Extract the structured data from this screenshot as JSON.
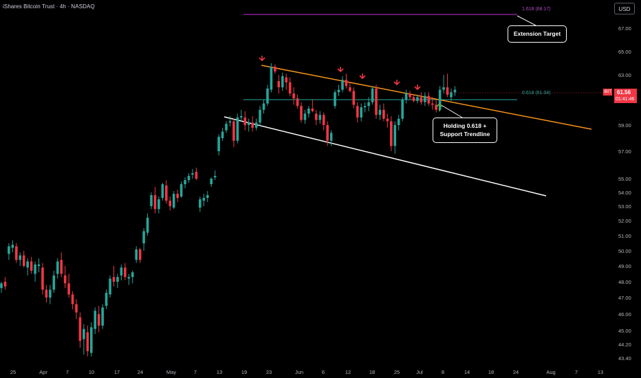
{
  "header": {
    "title": "iShares Bitcoin Trust · 4h · NASDAQ",
    "currency_button": "USD"
  },
  "price": {
    "symbol": "IBIT",
    "last": "61.56",
    "countdown": "01:41:46"
  },
  "annotations": {
    "extension_target": "Extension Target",
    "holding_line1": "Holding 0.618 +",
    "holding_line2": "Support Trendline",
    "fib_1618": "1.618 (68.17)",
    "fib_0618": "0.618 (61.04)"
  },
  "colors": {
    "bull": "#26a69a",
    "bear": "#f23645",
    "trend_resistance": "#f7931a",
    "trend_support": "#ffffff",
    "fib_extension": "#9c27b0",
    "fib_0618": "#1f8c84",
    "arrow_down": "#f23645",
    "arrow_up": "#4caf50"
  },
  "chart_data": {
    "type": "candlestick",
    "title": "iShares Bitcoin Trust · 4h · NASDAQ",
    "y_ticks": [
      "67.00",
      "65.00",
      "63.00",
      "61.00",
      "59.00",
      "57.00",
      "55.00",
      "54.00",
      "53.00",
      "52.00",
      "51.00",
      "50.00",
      "49.00",
      "48.00",
      "47.00",
      "46.00",
      "45.00",
      "44.20",
      "43.40"
    ],
    "x_ticks": [
      "25",
      "Apr",
      "7",
      "10",
      "17",
      "24",
      "May",
      "7",
      "13",
      "19",
      "23",
      "Jun",
      "6",
      "12",
      "18",
      "25",
      "Jul",
      "8",
      "14",
      "18",
      "24",
      "Aug",
      "7",
      "13"
    ],
    "x_range_labels": {
      "start": "Mar 25",
      "end": "Aug 13"
    },
    "levels": [
      {
        "name": "1.618 (68.17)",
        "value": 68.17
      },
      {
        "name": "0.618 (61.04)",
        "value": 61.04
      }
    ],
    "last_price": 61.56,
    "trendlines": [
      {
        "name": "resistance",
        "from": {
          "x": "May 21",
          "y": 63.9
        },
        "to": {
          "x": "Aug 10",
          "y": 58.5
        }
      },
      {
        "name": "support",
        "from": {
          "x": "May 14",
          "y": 59.7
        },
        "to": {
          "x": "Aug 1",
          "y": 53.7
        }
      }
    ],
    "rejection_markers": [
      "May 21",
      "Jun 10",
      "Jun 17",
      "Jun 25",
      "Jul 2"
    ],
    "support_marker": "Jul 8",
    "candles": [
      [
        47.6,
        48.0,
        47.3,
        47.9
      ],
      [
        48.0,
        48.3,
        47.5,
        47.7
      ],
      [
        49.8,
        50.5,
        49.4,
        50.3
      ],
      [
        50.2,
        50.7,
        49.9,
        50.4
      ],
      [
        50.3,
        50.5,
        49.2,
        49.4
      ],
      [
        49.4,
        49.9,
        49.0,
        49.7
      ],
      [
        49.7,
        50.0,
        48.9,
        49.0
      ],
      [
        48.9,
        49.5,
        48.4,
        49.3
      ],
      [
        49.3,
        49.6,
        48.5,
        48.7
      ],
      [
        48.5,
        49.3,
        48.0,
        49.1
      ],
      [
        49.0,
        49.5,
        48.6,
        49.1
      ],
      [
        48.9,
        49.2,
        47.2,
        47.5
      ],
      [
        47.5,
        47.8,
        46.7,
        47.0
      ],
      [
        47.0,
        47.8,
        46.6,
        47.5
      ],
      [
        47.5,
        48.7,
        47.3,
        48.4
      ],
      [
        48.5,
        49.5,
        48.2,
        49.3
      ],
      [
        49.4,
        49.9,
        48.3,
        48.5
      ],
      [
        48.4,
        49.0,
        47.6,
        47.9
      ],
      [
        47.9,
        48.5,
        47.0,
        47.2
      ],
      [
        47.2,
        47.4,
        46.3,
        46.6
      ],
      [
        46.6,
        46.9,
        45.7,
        46.1
      ],
      [
        45.8,
        46.1,
        44.0,
        44.4
      ],
      [
        44.5,
        45.4,
        43.6,
        45.1
      ],
      [
        44.9,
        45.3,
        43.5,
        43.8
      ],
      [
        43.7,
        45.5,
        43.5,
        45.2
      ],
      [
        45.1,
        46.4,
        44.8,
        46.2
      ],
      [
        46.0,
        46.5,
        44.9,
        45.3
      ],
      [
        45.3,
        46.6,
        45.1,
        46.4
      ],
      [
        46.5,
        47.5,
        46.3,
        47.3
      ],
      [
        47.2,
        48.4,
        47.0,
        48.2
      ],
      [
        48.3,
        49.0,
        47.7,
        48.0
      ],
      [
        48.0,
        48.5,
        47.6,
        48.3
      ],
      [
        48.4,
        49.1,
        48.1,
        48.9
      ],
      [
        48.9,
        49.2,
        48.1,
        48.3
      ],
      [
        48.2,
        48.5,
        47.8,
        48.3
      ],
      [
        48.3,
        48.7,
        47.9,
        48.6
      ],
      [
        49.4,
        50.3,
        49.2,
        50.1
      ],
      [
        50.1,
        50.2,
        49.2,
        49.4
      ],
      [
        50.5,
        51.5,
        50.0,
        51.3
      ],
      [
        51.2,
        52.5,
        51.0,
        52.2
      ],
      [
        53.0,
        54.0,
        52.8,
        53.8
      ],
      [
        53.8,
        54.4,
        52.5,
        52.8
      ],
      [
        52.8,
        53.7,
        52.5,
        53.5
      ],
      [
        53.6,
        54.7,
        53.4,
        54.6
      ],
      [
        54.5,
        54.9,
        53.2,
        53.4
      ],
      [
        53.4,
        53.7,
        52.7,
        53.0
      ],
      [
        52.9,
        54.1,
        52.8,
        53.9
      ],
      [
        53.9,
        54.2,
        53.3,
        53.6
      ],
      [
        53.7,
        54.8,
        53.6,
        54.6
      ],
      [
        54.6,
        55.1,
        54.3,
        54.9
      ],
      [
        54.9,
        55.4,
        54.7,
        55.2
      ],
      [
        55.3,
        55.7,
        55.0,
        55.4
      ],
      [
        55.5,
        55.8,
        54.9,
        55.0
      ],
      [
        52.9,
        53.7,
        52.6,
        53.5
      ],
      [
        53.4,
        53.9,
        53.0,
        53.6
      ],
      [
        53.6,
        54.1,
        53.3,
        53.8
      ],
      [
        54.6,
        55.1,
        54.4,
        55.0
      ],
      [
        55.1,
        55.6,
        54.9,
        55.2
      ],
      [
        57.0,
        58.3,
        56.7,
        58.1
      ],
      [
        58.0,
        58.8,
        57.8,
        58.5
      ],
      [
        58.6,
        59.3,
        58.4,
        59.1
      ],
      [
        59.2,
        59.7,
        58.9,
        59.3
      ],
      [
        59.3,
        59.5,
        57.3,
        57.8
      ],
      [
        57.8,
        59.9,
        57.6,
        59.6
      ],
      [
        59.6,
        60.2,
        59.3,
        59.7
      ],
      [
        59.6,
        60.1,
        58.6,
        59.0
      ],
      [
        59.0,
        59.5,
        58.5,
        59.2
      ],
      [
        59.2,
        59.7,
        58.5,
        58.8
      ],
      [
        58.8,
        59.5,
        58.6,
        59.2
      ],
      [
        59.2,
        60.5,
        58.9,
        60.2
      ],
      [
        60.2,
        61.0,
        59.9,
        60.7
      ],
      [
        60.7,
        62.2,
        60.5,
        61.9
      ],
      [
        61.8,
        64.0,
        61.6,
        63.7
      ],
      [
        63.7,
        63.9,
        63.1,
        63.3
      ],
      [
        62.5,
        63.0,
        61.5,
        62.0
      ],
      [
        62.0,
        63.2,
        61.7,
        62.9
      ],
      [
        62.8,
        63.1,
        61.8,
        62.4
      ],
      [
        62.4,
        62.8,
        61.3,
        61.5
      ],
      [
        61.5,
        62.0,
        60.6,
        61.1
      ],
      [
        61.1,
        61.4,
        60.3,
        60.5
      ],
      [
        60.5,
        60.8,
        59.2,
        59.4
      ],
      [
        59.4,
        60.2,
        59.1,
        59.9
      ],
      [
        59.9,
        60.5,
        59.6,
        60.3
      ],
      [
        60.3,
        61.0,
        60.0,
        60.1
      ],
      [
        59.9,
        60.2,
        59.0,
        59.4
      ],
      [
        59.4,
        60.1,
        59.1,
        59.8
      ],
      [
        59.8,
        60.0,
        58.6,
        59.0
      ],
      [
        59.0,
        59.3,
        57.4,
        57.8
      ],
      [
        57.8,
        58.6,
        57.4,
        58.4
      ],
      [
        60.5,
        61.8,
        60.3,
        61.6
      ],
      [
        61.6,
        62.2,
        61.3,
        61.8
      ],
      [
        61.8,
        62.9,
        61.6,
        62.6
      ],
      [
        62.6,
        63.1,
        61.9,
        62.1
      ],
      [
        62.0,
        62.4,
        61.6,
        61.7
      ],
      [
        61.7,
        62.0,
        60.3,
        60.6
      ],
      [
        60.5,
        60.8,
        59.2,
        59.6
      ],
      [
        59.6,
        60.7,
        59.3,
        60.4
      ],
      [
        60.4,
        60.8,
        60.0,
        60.5
      ],
      [
        60.5,
        61.2,
        60.1,
        60.8
      ],
      [
        60.8,
        62.1,
        60.6,
        61.9
      ],
      [
        61.9,
        62.2,
        59.5,
        59.8
      ],
      [
        59.8,
        60.6,
        59.4,
        60.2
      ],
      [
        60.2,
        60.7,
        59.3,
        59.5
      ],
      [
        59.5,
        59.9,
        58.8,
        59.3
      ],
      [
        59.3,
        59.7,
        57.0,
        57.4
      ],
      [
        57.4,
        59.3,
        56.8,
        59.0
      ],
      [
        59.0,
        59.8,
        58.6,
        59.5
      ],
      [
        59.5,
        61.2,
        59.3,
        61.0
      ],
      [
        61.0,
        61.8,
        60.7,
        61.5
      ],
      [
        61.5,
        61.7,
        61.0,
        61.2
      ],
      [
        61.2,
        61.4,
        60.8,
        60.9
      ],
      [
        60.9,
        61.4,
        60.7,
        61.2
      ],
      [
        61.2,
        61.6,
        60.6,
        60.8
      ],
      [
        60.8,
        61.6,
        60.5,
        61.3
      ],
      [
        61.3,
        61.6,
        60.5,
        60.7
      ],
      [
        60.7,
        61.2,
        60.2,
        60.6
      ],
      [
        60.6,
        61.0,
        60.0,
        60.2
      ],
      [
        60.2,
        62.1,
        60.1,
        61.8
      ],
      [
        61.8,
        63.0,
        61.5,
        62.0
      ],
      [
        62.0,
        63.1,
        61.2,
        61.4
      ],
      [
        61.2,
        61.9,
        60.9,
        61.6
      ],
      [
        61.6,
        62.1,
        61.3,
        61.8
      ]
    ]
  }
}
